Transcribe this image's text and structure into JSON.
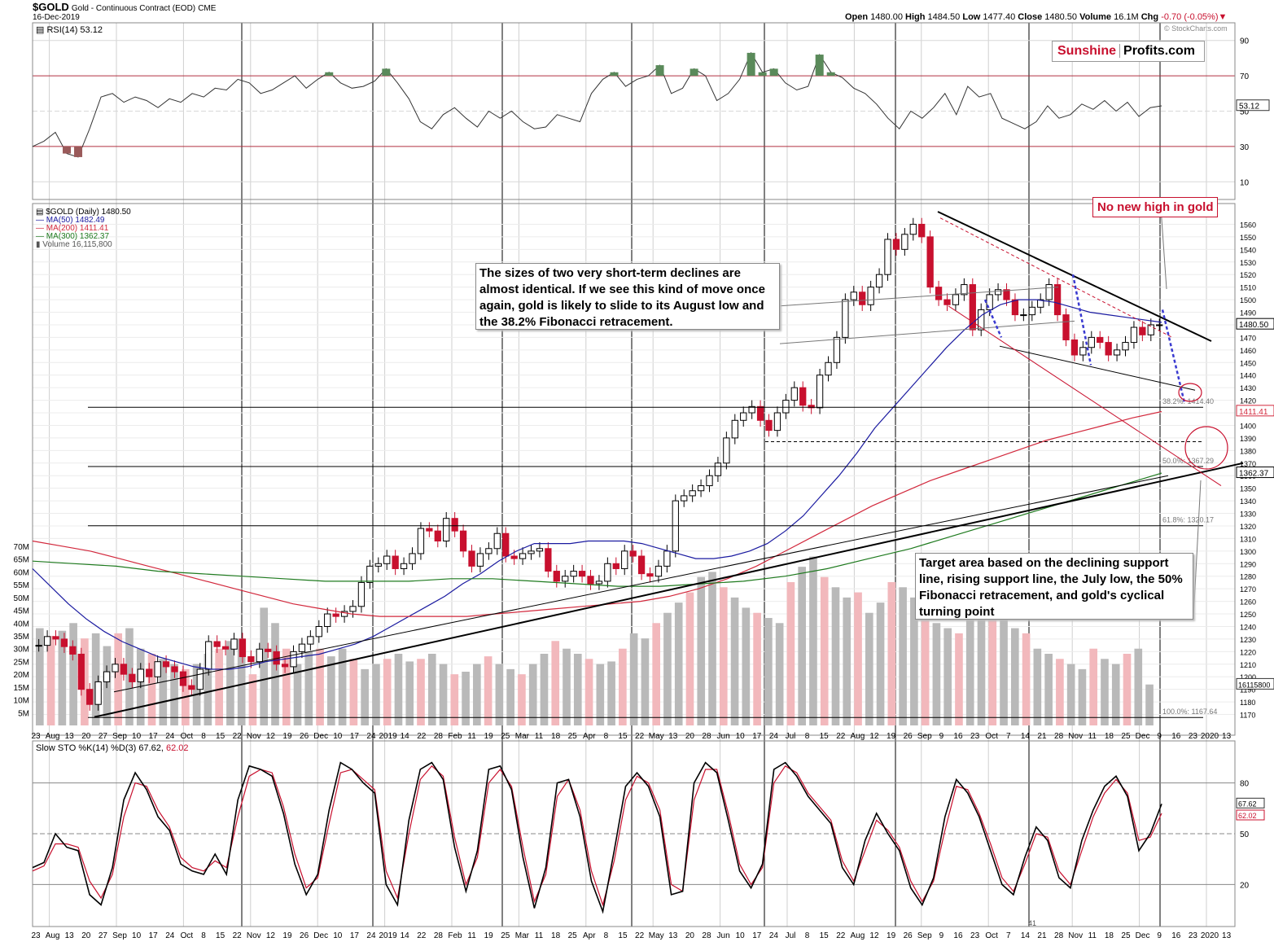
{
  "header": {
    "symbol": "$GOLD",
    "description": "Gold - Continuous Contract (EOD)",
    "exchange": "CME",
    "date": "16-Dec-2019",
    "open_label": "Open",
    "open": "1480.00",
    "high_label": "High",
    "high": "1484.50",
    "low_label": "Low",
    "low": "1477.40",
    "close_label": "Close",
    "close": "1480.50",
    "volume_label": "Volume",
    "volume": "16.1M",
    "chg_label": "Chg",
    "chg": "-0.70 (-0.05%)",
    "watermark": "© StockCharts.com"
  },
  "logo": {
    "part1": "Sunshine",
    "part2": "Profits.com"
  },
  "legend": {
    "rsi": "RSI(14) 53.12",
    "price": "$GOLD (Daily) 1480.50",
    "ma50": "MA(50) 1482.49",
    "ma200": "MA(200) 1411.41",
    "ma300": "MA(300) 1362.37",
    "volume": "Volume 16,115,800",
    "sto": "Slow STO %K(14) %D(3) 67.62,",
    "sto_d": "62.02"
  },
  "annotations": {
    "no_new_high": "No new high in gold",
    "declines": "The sizes of two very short-term declines are almost identical. If we see this kind of move once again, gold is likely to slide to its August low and the 38.2% Fibonacci retracement.",
    "target": "Target area based on the declining support line, rising support line, the July low, the 50% Fibonacci retracement, and gold's cyclical turning point",
    "fib382": "38.2%: 1414.40",
    "fib50": "50.0%: 1367.29",
    "fib618": "61.8%: 1320.17",
    "fib100": "100.0%: 1167.64",
    "sto_bottom": "41"
  },
  "colors": {
    "up": "#000000",
    "down": "#c8102e",
    "ma50": "#1a1aa0",
    "ma200": "#d2283c",
    "ma300": "#1e7a1e",
    "vol_up": "#b9b9b9",
    "vol_down": "#f2b8bc",
    "rsi_over": "#5a8a5a",
    "rsi_under": "#9a5a5a",
    "dashed_blue": "#3a3ad0",
    "accent_red": "#c8102e"
  },
  "chart_data": [
    {
      "type": "line",
      "title": "RSI(14) 53.12",
      "ylim": [
        0,
        100
      ],
      "yticks": [
        10,
        30,
        50,
        70,
        90
      ],
      "last_value": "53.12",
      "series": [
        {
          "name": "RSI(14)",
          "values": [
            30,
            33,
            38,
            26,
            24,
            40,
            58,
            60,
            55,
            58,
            56,
            52,
            57,
            55,
            60,
            58,
            63,
            62,
            68,
            66,
            60,
            62,
            66,
            70,
            63,
            68,
            72,
            66,
            63,
            64,
            67,
            74,
            66,
            57,
            44,
            40,
            48,
            52,
            46,
            41,
            50,
            46,
            50,
            44,
            40,
            41,
            48,
            46,
            44,
            60,
            68,
            72,
            64,
            68,
            70,
            76,
            60,
            63,
            74,
            70,
            56,
            60,
            68,
            83,
            72,
            74,
            66,
            62,
            64,
            82,
            72,
            69,
            63,
            60,
            54,
            46,
            40,
            50,
            46,
            52,
            60,
            48,
            64,
            58,
            60,
            46,
            43,
            40,
            44,
            53,
            46,
            48,
            54,
            51,
            56,
            50,
            55,
            47,
            52,
            53
          ]
        }
      ]
    },
    {
      "type": "candlestick",
      "title": "$GOLD (Daily) 1480.50",
      "ylim": [
        1160,
        1570
      ],
      "x_tick_labels": [
        "23",
        "Aug",
        "13",
        "20",
        "27",
        "Sep",
        "10",
        "17",
        "24",
        "Oct",
        "8",
        "15",
        "22",
        "Nov",
        "12",
        "19",
        "26",
        "Dec",
        "10",
        "17",
        "24",
        "2019",
        "14",
        "22",
        "28",
        "Feb",
        "11",
        "19",
        "25",
        "Mar",
        "11",
        "18",
        "25",
        "Apr",
        "8",
        "15",
        "22",
        "May",
        "13",
        "20",
        "28",
        "Jun",
        "10",
        "17",
        "24",
        "Jul",
        "8",
        "15",
        "22",
        "Aug",
        "12",
        "19",
        "26",
        "Sep",
        "9",
        "16",
        "23",
        "Oct",
        "7",
        "14",
        "21",
        "28",
        "Nov",
        "11",
        "18",
        "25",
        "Dec",
        "9",
        "16",
        "23",
        "2020",
        "13"
      ],
      "y_tick_labels": [
        1170,
        1180,
        1190,
        1200,
        1210,
        1220,
        1230,
        1240,
        1250,
        1260,
        1270,
        1280,
        1290,
        1300,
        1310,
        1320,
        1330,
        1340,
        1350,
        1360,
        1370,
        1380,
        1390,
        1400,
        1410,
        1420,
        1430,
        1440,
        1450,
        1460,
        1470,
        1480,
        1490,
        1500,
        1510,
        1520,
        1530,
        1540,
        1550,
        1560
      ],
      "volume_tick_labels": [
        "5M",
        "10M",
        "15M",
        "20M",
        "25M",
        "30M",
        "35M",
        "40M",
        "45M",
        "50M",
        "55M",
        "60M",
        "65M",
        "70M"
      ],
      "last_price": "1480.50",
      "ma_last": {
        "ma50": "1482.49",
        "ma200": "1411.41",
        "ma300": "1362.37"
      },
      "volume_last": "16115800",
      "series": [
        {
          "name": "$GOLD",
          "values": [
            1225,
            1232,
            1230,
            1224,
            1218,
            1190,
            1178,
            1196,
            1204,
            1210,
            1202,
            1196,
            1206,
            1200,
            1212,
            1208,
            1204,
            1193,
            1190,
            1206,
            1228,
            1224,
            1222,
            1230,
            1216,
            1212,
            1222,
            1220,
            1210,
            1208,
            1220,
            1226,
            1232,
            1240,
            1250,
            1248,
            1252,
            1256,
            1275,
            1288,
            1290,
            1296,
            1286,
            1290,
            1298,
            1318,
            1316,
            1308,
            1326,
            1316,
            1300,
            1288,
            1298,
            1302,
            1314,
            1296,
            1294,
            1298,
            1300,
            1302,
            1284,
            1276,
            1280,
            1284,
            1280,
            1274,
            1276,
            1290,
            1286,
            1300,
            1296,
            1282,
            1280,
            1288,
            1300,
            1340,
            1344,
            1348,
            1352,
            1360,
            1370,
            1390,
            1404,
            1410,
            1415,
            1404,
            1396,
            1410,
            1420,
            1430,
            1416,
            1414,
            1440,
            1450,
            1470,
            1500,
            1506,
            1496,
            1510,
            1520,
            1548,
            1540,
            1552,
            1560,
            1550,
            1510,
            1500,
            1496,
            1504,
            1512,
            1476,
            1492,
            1504,
            1508,
            1500,
            1488,
            1488,
            1494,
            1500,
            1512,
            1488,
            1468,
            1456,
            1462,
            1470,
            1466,
            1456,
            1460,
            1466,
            1478,
            1472,
            1480,
            1480
          ]
        },
        {
          "name": "MA(50)",
          "values": [
            1286,
            1272,
            1258,
            1246,
            1236,
            1228,
            1222,
            1216,
            1212,
            1208,
            1206,
            1206,
            1208,
            1212,
            1214,
            1216,
            1218,
            1222,
            1226,
            1232,
            1240,
            1248,
            1256,
            1264,
            1274,
            1282,
            1292,
            1300,
            1306,
            1306,
            1306,
            1308,
            1308,
            1308,
            1306,
            1302,
            1298,
            1294,
            1294,
            1296,
            1300,
            1306,
            1316,
            1328,
            1344,
            1360,
            1378,
            1398,
            1414,
            1430,
            1446,
            1462,
            1476,
            1488,
            1496,
            1500,
            1500,
            1498,
            1494,
            1490,
            1488,
            1486,
            1484,
            1482
          ]
        },
        {
          "name": "MA(200)",
          "values": [
            1308,
            1304,
            1300,
            1294,
            1288,
            1282,
            1276,
            1270,
            1264,
            1258,
            1254,
            1250,
            1248,
            1248,
            1248,
            1248,
            1250,
            1252,
            1254,
            1256,
            1258,
            1260,
            1264,
            1270,
            1278,
            1288,
            1300,
            1312,
            1324,
            1336,
            1346,
            1356,
            1364,
            1372,
            1380,
            1388,
            1394,
            1400,
            1406,
            1411
          ]
        },
        {
          "name": "MA(300)",
          "values": [
            1292,
            1290,
            1288,
            1284,
            1282,
            1280,
            1278,
            1276,
            1276,
            1276,
            1278,
            1278,
            1276,
            1274,
            1272,
            1272,
            1274,
            1276,
            1280,
            1286,
            1294,
            1302,
            1312,
            1322,
            1332,
            1342,
            1352,
            1362
          ]
        },
        {
          "name": "Volume",
          "values": [
            38,
            35,
            37,
            40,
            34,
            36,
            31,
            36,
            38,
            30,
            28,
            26,
            24,
            22,
            24,
            28,
            30,
            33,
            34,
            20,
            46,
            40,
            30,
            24,
            29,
            30,
            27,
            30,
            26,
            22,
            24,
            26,
            28,
            25,
            26,
            28,
            24,
            20,
            21,
            24,
            27,
            24,
            22,
            20,
            24,
            28,
            33,
            30,
            28,
            26,
            24,
            25,
            30,
            36,
            34,
            40,
            44,
            48,
            52,
            58,
            60,
            54,
            50,
            46,
            44,
            42,
            40,
            56,
            62,
            66,
            58,
            54,
            50,
            52,
            44,
            48,
            56,
            54,
            50,
            44,
            40,
            38,
            36,
            48,
            52,
            46,
            42,
            38,
            36,
            30,
            28,
            26,
            24,
            22,
            30,
            26,
            24,
            28,
            30,
            16
          ]
        }
      ]
    },
    {
      "type": "line",
      "title": "Slow STO %K(14) %D(3) 67.62, 62.02",
      "ylim": [
        0,
        100
      ],
      "yticks": [
        20,
        50,
        80
      ],
      "last_values": {
        "k": "67.62",
        "d": "62.02"
      },
      "series": [
        {
          "name": "%K",
          "values": [
            30,
            33,
            50,
            42,
            40,
            14,
            8,
            30,
            70,
            86,
            76,
            60,
            52,
            32,
            28,
            26,
            38,
            26,
            70,
            90,
            88,
            84,
            62,
            32,
            14,
            26,
            64,
            92,
            88,
            80,
            74,
            20,
            8,
            58,
            88,
            92,
            82,
            42,
            16,
            40,
            88,
            90,
            76,
            36,
            6,
            30,
            80,
            82,
            60,
            22,
            4,
            40,
            78,
            86,
            78,
            60,
            14,
            16,
            80,
            92,
            86,
            58,
            28,
            18,
            32,
            88,
            92,
            84,
            72,
            64,
            56,
            30,
            20,
            46,
            62,
            50,
            40,
            18,
            8,
            24,
            60,
            82,
            74,
            60,
            40,
            20,
            14,
            36,
            54,
            46,
            24,
            18,
            46,
            64,
            78,
            84,
            72,
            40,
            50,
            67.6
          ]
        },
        {
          "name": "%D",
          "values": [
            28,
            31,
            44,
            44,
            42,
            22,
            12,
            26,
            60,
            80,
            78,
            64,
            54,
            36,
            30,
            28,
            34,
            30,
            60,
            84,
            88,
            86,
            66,
            38,
            18,
            24,
            56,
            86,
            88,
            82,
            76,
            28,
            12,
            50,
            82,
            90,
            84,
            48,
            20,
            36,
            80,
            88,
            78,
            42,
            10,
            26,
            72,
            82,
            64,
            28,
            8,
            34,
            70,
            84,
            80,
            64,
            20,
            16,
            70,
            88,
            88,
            62,
            32,
            20,
            30,
            80,
            90,
            86,
            74,
            66,
            58,
            34,
            22,
            40,
            58,
            52,
            42,
            22,
            10,
            22,
            52,
            78,
            76,
            62,
            44,
            24,
            16,
            32,
            50,
            48,
            28,
            20,
            40,
            60,
            74,
            82,
            74,
            46,
            48,
            62.0
          ]
        }
      ]
    }
  ]
}
